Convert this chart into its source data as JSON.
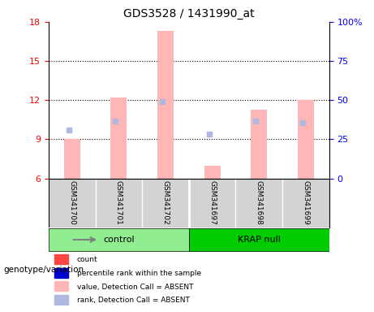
{
  "title": "GDS3528 / 1431990_at",
  "samples": [
    "GSM341700",
    "GSM341701",
    "GSM341702",
    "GSM341697",
    "GSM341698",
    "GSM341699"
  ],
  "groups": [
    "control",
    "control",
    "control",
    "KRAP null",
    "KRAP null",
    "KRAP null"
  ],
  "group_labels": [
    "control",
    "KRAP null"
  ],
  "group_colors": [
    "#90ee90",
    "#00cc00"
  ],
  "ylim_left": [
    6,
    18
  ],
  "ylim_right": [
    0,
    100
  ],
  "yticks_left": [
    6,
    9,
    12,
    15,
    18
  ],
  "yticks_right": [
    0,
    25,
    50,
    75,
    100
  ],
  "bar_color_absent": "#ffb6b6",
  "dot_color_absent": "#b0b8e0",
  "bar_color_present": "#ff4444",
  "dot_color_present": "#0000cc",
  "bar_bottom": 6,
  "absent_bar_tops": [
    9.0,
    12.2,
    17.3,
    7.0,
    11.3,
    12.0
  ],
  "absent_dot_y": [
    9.7,
    10.4,
    11.9,
    9.4,
    10.4,
    10.3
  ],
  "absent_dot_x_offsets": [
    -0.1,
    -0.1,
    -0.1,
    -0.1,
    -0.1,
    -0.1
  ],
  "legend_items": [
    {
      "label": "count",
      "color": "#ff4444",
      "style": "square"
    },
    {
      "label": "percentile rank within the sample",
      "color": "#0000cc",
      "style": "square"
    },
    {
      "label": "value, Detection Call = ABSENT",
      "color": "#ffb6b6",
      "style": "square"
    },
    {
      "label": "rank, Detection Call = ABSENT",
      "color": "#b0b8e0",
      "style": "square"
    }
  ],
  "left_label": "genotype/variation",
  "background_color": "#ffffff",
  "panel_color": "#d3d3d3",
  "grid_linestyle": "dotted"
}
